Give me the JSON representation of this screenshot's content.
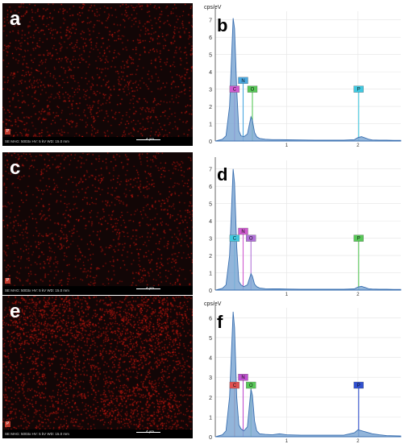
{
  "panels": [
    {
      "letter": "a",
      "element": "P",
      "density": 0.35,
      "clusters": false
    },
    {
      "letter": "c",
      "element": "P",
      "density": 0.3,
      "clusters": false
    },
    {
      "letter": "e",
      "element": "P",
      "density": 0.55,
      "clusters": true
    }
  ],
  "sem_footer": {
    "a": "SE   MAG: 5003x   HV: 5 kV   WD: 15.0 mm",
    "c": "SE   MAG: 5003x   HV: 5 kV   WD: 15.0 mm",
    "e": "SE   MAG: 5003x   HV: 5 kV   WD: 15.0 mm",
    "scale": "4 µm"
  },
  "chart_data": [
    {
      "letter": "b",
      "type": "line",
      "ylabel": "cps/eV",
      "xlim": [
        0,
        2.6
      ],
      "ylim": [
        0,
        7.5
      ],
      "xticks": [
        1,
        2
      ],
      "yticks": [
        0,
        1,
        2,
        3,
        4,
        5,
        6,
        7
      ],
      "x": [
        0.0,
        0.05,
        0.1,
        0.15,
        0.2,
        0.25,
        0.27,
        0.3,
        0.33,
        0.36,
        0.4,
        0.45,
        0.5,
        0.52,
        0.55,
        0.58,
        0.62,
        0.7,
        0.8,
        0.9,
        1.0,
        1.2,
        1.4,
        1.6,
        1.8,
        1.95,
        2.0,
        2.05,
        2.1,
        2.15,
        2.2,
        2.3,
        2.4,
        2.5,
        2.6
      ],
      "y": [
        0,
        0.05,
        0.1,
        0.3,
        2.0,
        7.1,
        6.5,
        3.0,
        0.6,
        0.3,
        0.25,
        0.4,
        1.4,
        1.2,
        0.5,
        0.25,
        0.15,
        0.1,
        0.08,
        0.08,
        0.07,
        0.06,
        0.05,
        0.05,
        0.05,
        0.08,
        0.2,
        0.25,
        0.18,
        0.1,
        0.06,
        0.05,
        0.05,
        0.04,
        0.04
      ],
      "markers": [
        {
          "label": "C",
          "x": 0.27,
          "top": 3.0,
          "color": "#d05ad0"
        },
        {
          "label": "N",
          "x": 0.39,
          "top": 3.5,
          "color": "#4aa8e0"
        },
        {
          "label": "O",
          "x": 0.52,
          "top": 3.0,
          "color": "#58c858"
        },
        {
          "label": "P",
          "x": 2.01,
          "top": 3.0,
          "color": "#40c8e0"
        }
      ]
    },
    {
      "letter": "d",
      "type": "line",
      "ylabel": "",
      "xlim": [
        0,
        2.6
      ],
      "ylim": [
        0,
        7.5
      ],
      "xticks": [
        1,
        2
      ],
      "yticks": [
        0,
        1,
        2,
        3,
        4,
        5,
        6,
        7
      ],
      "x": [
        0.0,
        0.05,
        0.1,
        0.15,
        0.2,
        0.25,
        0.27,
        0.3,
        0.33,
        0.36,
        0.4,
        0.45,
        0.5,
        0.52,
        0.55,
        0.58,
        0.62,
        0.7,
        0.8,
        0.9,
        1.0,
        1.2,
        1.4,
        1.6,
        1.8,
        1.95,
        2.0,
        2.05,
        2.1,
        2.15,
        2.2,
        2.3,
        2.4,
        2.5,
        2.6
      ],
      "y": [
        0,
        0.05,
        0.1,
        0.3,
        2.0,
        7.0,
        6.2,
        2.5,
        0.5,
        0.3,
        0.2,
        0.3,
        0.95,
        0.8,
        0.35,
        0.2,
        0.12,
        0.08,
        0.07,
        0.07,
        0.06,
        0.05,
        0.05,
        0.05,
        0.05,
        0.07,
        0.18,
        0.22,
        0.15,
        0.08,
        0.06,
        0.05,
        0.05,
        0.04,
        0.04
      ],
      "markers": [
        {
          "label": "C",
          "x": 0.27,
          "top": 3.0,
          "color": "#40c8e0"
        },
        {
          "label": "N",
          "x": 0.39,
          "top": 3.4,
          "color": "#d05ad0"
        },
        {
          "label": "O",
          "x": 0.5,
          "top": 3.0,
          "color": "#b070d8"
        },
        {
          "label": "P",
          "x": 2.01,
          "top": 3.0,
          "color": "#58c858"
        }
      ]
    },
    {
      "letter": "f",
      "type": "line",
      "ylabel": "cps/eV",
      "xlim": [
        0,
        2.6
      ],
      "ylim": [
        0,
        6.5
      ],
      "xticks": [
        1,
        2
      ],
      "yticks": [
        0,
        1,
        2,
        3,
        4,
        5,
        6
      ],
      "x": [
        0.0,
        0.05,
        0.1,
        0.15,
        0.2,
        0.25,
        0.27,
        0.3,
        0.33,
        0.36,
        0.4,
        0.45,
        0.5,
        0.52,
        0.55,
        0.58,
        0.62,
        0.7,
        0.8,
        0.9,
        1.0,
        1.2,
        1.4,
        1.6,
        1.8,
        1.95,
        2.0,
        2.05,
        2.1,
        2.15,
        2.2,
        2.3,
        2.4,
        2.5,
        2.6
      ],
      "y": [
        0,
        0.05,
        0.1,
        0.3,
        2.0,
        6.3,
        5.5,
        2.0,
        0.6,
        0.4,
        0.3,
        0.5,
        2.4,
        2.1,
        0.8,
        0.3,
        0.15,
        0.12,
        0.1,
        0.15,
        0.1,
        0.08,
        0.08,
        0.08,
        0.08,
        0.2,
        0.35,
        0.3,
        0.25,
        0.2,
        0.15,
        0.1,
        0.06,
        0.05,
        0.04
      ],
      "markers": [
        {
          "label": "C",
          "x": 0.27,
          "top": 2.6,
          "color": "#e05050"
        },
        {
          "label": "N",
          "x": 0.39,
          "top": 3.0,
          "color": "#c050d0"
        },
        {
          "label": "O",
          "x": 0.5,
          "top": 2.6,
          "color": "#58c858"
        },
        {
          "label": "P",
          "x": 2.01,
          "top": 2.6,
          "color": "#3050d0"
        }
      ]
    }
  ]
}
